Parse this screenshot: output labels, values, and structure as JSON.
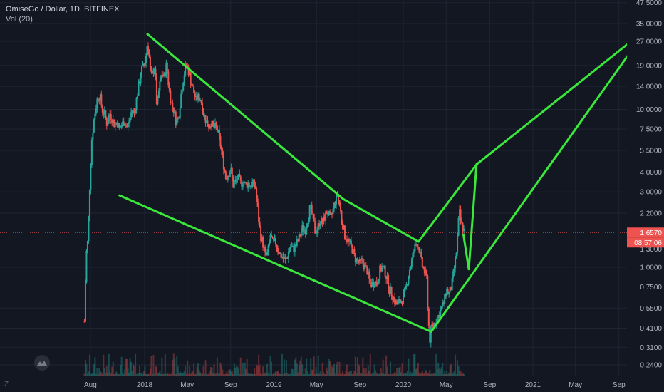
{
  "legend": {
    "symbol_line": "OmiseGo / Dollar, 1D, BITFINEX",
    "volume_label": "Vol (20)"
  },
  "price_axis": {
    "ticks": [
      "47.5000",
      "35.0000",
      "27.0000",
      "19.0000",
      "14.0000",
      "10.0000",
      "7.5000",
      "5.5000",
      "4.0000",
      "3.0000",
      "2.2000",
      "1.3000",
      "1.0000",
      "0.7500",
      "0.5500",
      "0.4100",
      "0.3100",
      "0.2400"
    ],
    "last_price": "1.6570",
    "countdown": "08:57:06"
  },
  "time_axis": {
    "ticks": [
      "Aug",
      "2018",
      "May",
      "Sep",
      "2019",
      "May",
      "Sep",
      "2020",
      "May",
      "Sep",
      "2021",
      "May",
      "Sep"
    ]
  },
  "footer": {
    "mark": "Z"
  },
  "colors": {
    "background": "#131722",
    "up": "#26a69a",
    "down": "#ef5350",
    "annotation": "#39e83b",
    "price_line": "#ef5350"
  },
  "icons": {
    "logo": "tradingview-cloud-icon"
  },
  "chart_data": {
    "type": "candlestick",
    "title": "OmiseGo / Dollar, 1D, BITFINEX",
    "xlabel": "",
    "ylabel": "",
    "y_scale": "log",
    "ylim": [
      0.21,
      52
    ],
    "xlim": [
      "2017-07-14",
      "2021-11-20"
    ],
    "grid": true,
    "last_price": 1.657,
    "price_path": [
      [
        "2017-07-15",
        0.45
      ],
      [
        "2017-07-20",
        1.2
      ],
      [
        "2017-07-25",
        1.5
      ],
      [
        "2017-07-31",
        3.8
      ],
      [
        "2017-08-05",
        6.5
      ],
      [
        "2017-08-12",
        9.0
      ],
      [
        "2017-08-20",
        11.5
      ],
      [
        "2017-08-27",
        12.5
      ],
      [
        "2017-09-03",
        10.0
      ],
      [
        "2017-09-10",
        9.3
      ],
      [
        "2017-09-17",
        8.0
      ],
      [
        "2017-09-24",
        9.5
      ],
      [
        "2017-10-01",
        8.8
      ],
      [
        "2017-10-08",
        8.0
      ],
      [
        "2017-10-15",
        8.4
      ],
      [
        "2017-10-22",
        7.5
      ],
      [
        "2017-10-29",
        8.0
      ],
      [
        "2017-11-05",
        8.5
      ],
      [
        "2017-11-12",
        7.7
      ],
      [
        "2017-11-19",
        8.5
      ],
      [
        "2017-11-26",
        10.0
      ],
      [
        "2017-12-03",
        9.5
      ],
      [
        "2017-12-10",
        12.0
      ],
      [
        "2017-12-17",
        15.0
      ],
      [
        "2017-12-24",
        18.0
      ],
      [
        "2017-12-31",
        19.0
      ],
      [
        "2018-01-05",
        22.0
      ],
      [
        "2018-01-09",
        27.0
      ],
      [
        "2018-01-13",
        23.0
      ],
      [
        "2018-01-18",
        16.0
      ],
      [
        "2018-01-24",
        17.0
      ],
      [
        "2018-01-30",
        19.0
      ],
      [
        "2018-02-05",
        10.0
      ],
      [
        "2018-02-10",
        13.0
      ],
      [
        "2018-02-18",
        17.0
      ],
      [
        "2018-02-25",
        16.0
      ],
      [
        "2018-03-04",
        19.5
      ],
      [
        "2018-03-10",
        14.0
      ],
      [
        "2018-03-17",
        11.0
      ],
      [
        "2018-03-24",
        10.0
      ],
      [
        "2018-03-31",
        8.3
      ],
      [
        "2018-04-07",
        9.0
      ],
      [
        "2018-04-14",
        12.5
      ],
      [
        "2018-04-21",
        16.0
      ],
      [
        "2018-04-28",
        19.5
      ],
      [
        "2018-05-05",
        17.5
      ],
      [
        "2018-05-12",
        15.0
      ],
      [
        "2018-05-19",
        13.0
      ],
      [
        "2018-05-26",
        11.5
      ],
      [
        "2018-06-02",
        12.0
      ],
      [
        "2018-06-09",
        11.5
      ],
      [
        "2018-06-16",
        9.5
      ],
      [
        "2018-06-23",
        8.5
      ],
      [
        "2018-06-30",
        7.8
      ],
      [
        "2018-07-07",
        8.3
      ],
      [
        "2018-07-14",
        7.5
      ],
      [
        "2018-07-21",
        7.8
      ],
      [
        "2018-07-28",
        7.0
      ],
      [
        "2018-08-04",
        5.8
      ],
      [
        "2018-08-11",
        4.6
      ],
      [
        "2018-08-18",
        3.7
      ],
      [
        "2018-08-25",
        3.9
      ],
      [
        "2018-09-01",
        4.2
      ],
      [
        "2018-09-08",
        3.3
      ],
      [
        "2018-09-15",
        3.5
      ],
      [
        "2018-09-22",
        3.7
      ],
      [
        "2018-09-29",
        3.4
      ],
      [
        "2018-10-06",
        3.5
      ],
      [
        "2018-10-13",
        3.3
      ],
      [
        "2018-10-20",
        3.4
      ],
      [
        "2018-10-27",
        3.3
      ],
      [
        "2018-11-03",
        3.4
      ],
      [
        "2018-11-10",
        3.2
      ],
      [
        "2018-11-17",
        2.2
      ],
      [
        "2018-11-24",
        1.6
      ],
      [
        "2018-12-01",
        1.4
      ],
      [
        "2018-12-08",
        1.15
      ],
      [
        "2018-12-15",
        1.25
      ],
      [
        "2018-12-22",
        1.6
      ],
      [
        "2018-12-29",
        1.4
      ],
      [
        "2019-01-05",
        1.45
      ],
      [
        "2019-01-12",
        1.3
      ],
      [
        "2019-01-19",
        1.2
      ],
      [
        "2019-01-26",
        1.15
      ],
      [
        "2019-02-02",
        1.1
      ],
      [
        "2019-02-09",
        1.2
      ],
      [
        "2019-02-16",
        1.35
      ],
      [
        "2019-02-23",
        1.3
      ],
      [
        "2019-03-02",
        1.35
      ],
      [
        "2019-03-09",
        1.45
      ],
      [
        "2019-03-16",
        1.6
      ],
      [
        "2019-03-23",
        1.8
      ],
      [
        "2019-03-30",
        1.7
      ],
      [
        "2019-04-06",
        2.0
      ],
      [
        "2019-04-13",
        2.4
      ],
      [
        "2019-04-20",
        2.1
      ],
      [
        "2019-04-27",
        1.7
      ],
      [
        "2019-05-04",
        1.75
      ],
      [
        "2019-05-11",
        2.0
      ],
      [
        "2019-05-18",
        1.9
      ],
      [
        "2019-05-25",
        2.1
      ],
      [
        "2019-06-01",
        2.3
      ],
      [
        "2019-06-08",
        2.0
      ],
      [
        "2019-06-15",
        2.2
      ],
      [
        "2019-06-22",
        2.6
      ],
      [
        "2019-06-29",
        2.9
      ],
      [
        "2019-07-06",
        2.4
      ],
      [
        "2019-07-13",
        1.9
      ],
      [
        "2019-07-20",
        1.6
      ],
      [
        "2019-07-27",
        1.5
      ],
      [
        "2019-08-03",
        1.4
      ],
      [
        "2019-08-10",
        1.3
      ],
      [
        "2019-08-17",
        1.15
      ],
      [
        "2019-08-24",
        1.1
      ],
      [
        "2019-08-31",
        1.05
      ],
      [
        "2019-09-07",
        1.1
      ],
      [
        "2019-09-14",
        1.0
      ],
      [
        "2019-09-21",
        0.95
      ],
      [
        "2019-09-28",
        0.8
      ],
      [
        "2019-10-05",
        0.78
      ],
      [
        "2019-10-12",
        0.82
      ],
      [
        "2019-10-19",
        0.78
      ],
      [
        "2019-10-26",
        0.95
      ],
      [
        "2019-11-02",
        1.0
      ],
      [
        "2019-11-09",
        0.95
      ],
      [
        "2019-11-16",
        0.85
      ],
      [
        "2019-11-23",
        0.72
      ],
      [
        "2019-11-30",
        0.68
      ],
      [
        "2019-12-07",
        0.62
      ],
      [
        "2019-12-14",
        0.58
      ],
      [
        "2019-12-21",
        0.6
      ],
      [
        "2019-12-28",
        0.62
      ],
      [
        "2020-01-04",
        0.68
      ],
      [
        "2020-01-11",
        0.78
      ],
      [
        "2020-01-18",
        0.95
      ],
      [
        "2020-01-25",
        1.1
      ],
      [
        "2020-02-01",
        1.3
      ],
      [
        "2020-02-08",
        1.45
      ],
      [
        "2020-02-15",
        1.3
      ],
      [
        "2020-02-22",
        1.05
      ],
      [
        "2020-02-29",
        0.95
      ],
      [
        "2020-03-07",
        0.85
      ],
      [
        "2020-03-12",
        0.45
      ],
      [
        "2020-03-16",
        0.35
      ],
      [
        "2020-03-21",
        0.42
      ],
      [
        "2020-03-28",
        0.44
      ],
      [
        "2020-04-04",
        0.47
      ],
      [
        "2020-04-11",
        0.5
      ],
      [
        "2020-04-18",
        0.55
      ],
      [
        "2020-04-25",
        0.6
      ],
      [
        "2020-05-02",
        0.72
      ],
      [
        "2020-05-09",
        0.68
      ],
      [
        "2020-05-16",
        0.75
      ],
      [
        "2020-05-23",
        0.95
      ],
      [
        "2020-05-30",
        1.25
      ],
      [
        "2020-06-03",
        1.65
      ],
      [
        "2020-06-07",
        2.3
      ],
      [
        "2020-06-11",
        1.95
      ],
      [
        "2020-06-15",
        1.8
      ],
      [
        "2020-06-19",
        1.75
      ],
      [
        "2020-06-22",
        1.657
      ]
    ],
    "drawn_lines": [
      {
        "points": [
          [
            "2018-01-09",
            30.0
          ],
          [
            "2019-07-16",
            2.7
          ],
          [
            "2020-02-13",
            1.45
          ],
          [
            "2020-07-27",
            4.5
          ],
          [
            "2021-10-05",
            27.0
          ]
        ]
      },
      {
        "points": [
          [
            "2017-10-22",
            2.85
          ],
          [
            "2020-03-20",
            0.39
          ],
          [
            "2021-10-14",
            25.0
          ]
        ]
      },
      {
        "points": [
          [
            "2020-06-19",
            1.6
          ],
          [
            "2020-07-04",
            0.97
          ],
          [
            "2020-07-26",
            4.5
          ]
        ]
      }
    ]
  }
}
